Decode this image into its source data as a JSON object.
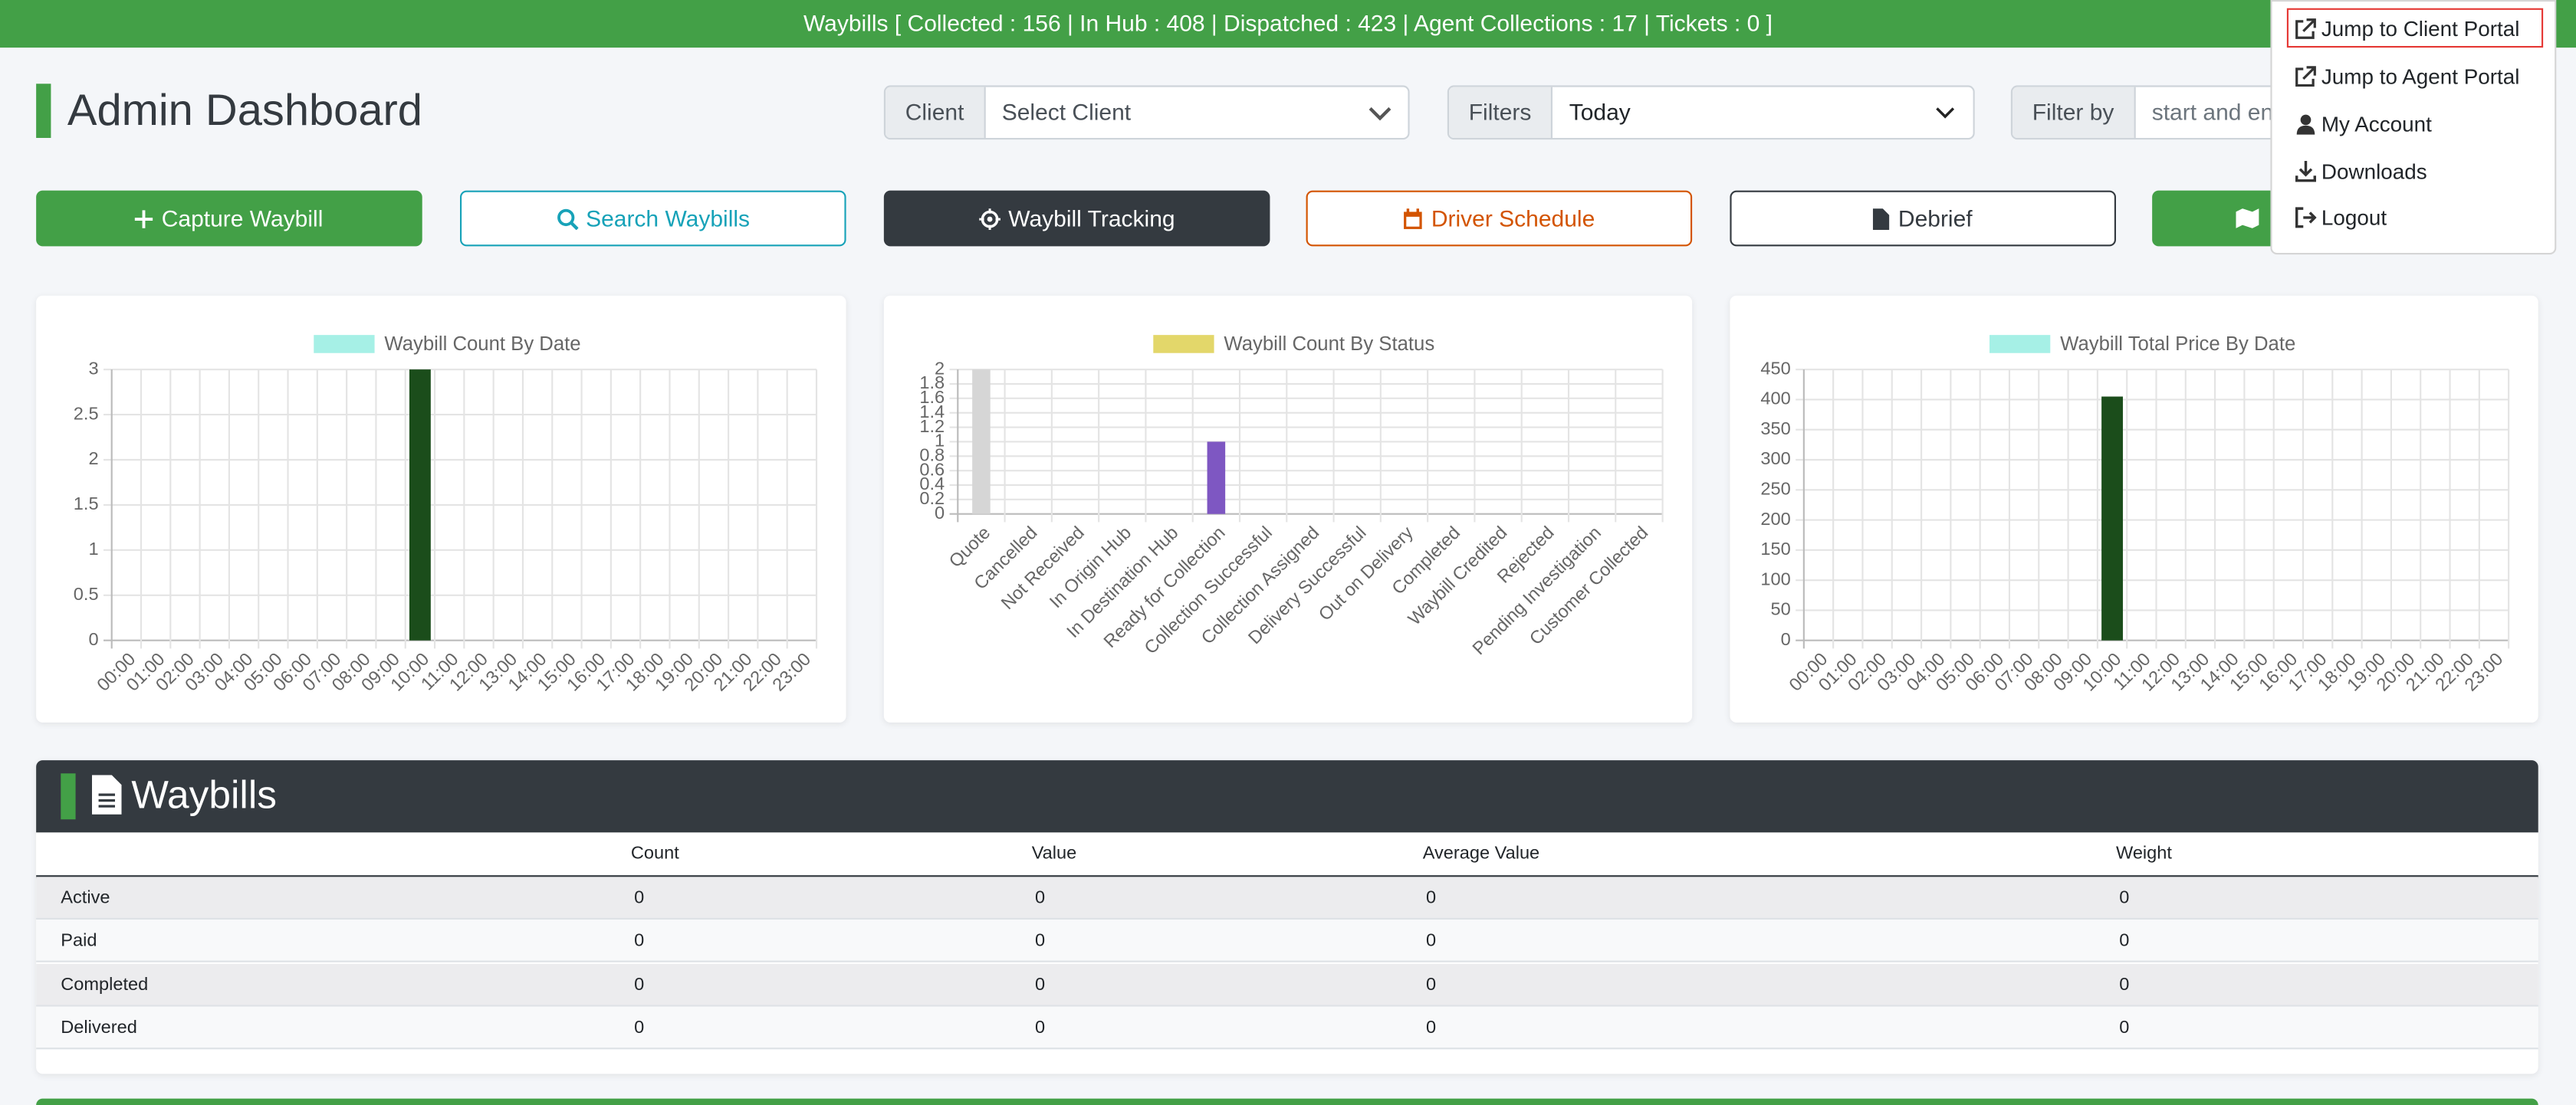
{
  "top_bar": {
    "text": "Waybills [ Collected : 156 | In Hub : 408 | Dispatched : 423 | Agent Collections : 17 | Tickets : 0 ]"
  },
  "header": {
    "title": "Admin Dashboard"
  },
  "filters": {
    "client_label": "Client",
    "client_placeholder": "Select Client",
    "filters_label": "Filters",
    "filters_value": "Today",
    "filter_by_label": "Filter by",
    "filter_by_placeholder": "start and en"
  },
  "buttons": [
    "Capture Waybill",
    "Search Waybills",
    "Waybill Tracking",
    "Driver Schedule",
    "Debrief"
  ],
  "user_menu": {
    "items": [
      "Jump to Client Portal",
      "Jump to Agent Portal",
      "My Account",
      "Downloads",
      "Logout"
    ]
  },
  "chart_data": [
    {
      "type": "bar",
      "categories": [
        "00:00",
        "01:00",
        "02:00",
        "03:00",
        "04:00",
        "05:00",
        "06:00",
        "07:00",
        "08:00",
        "09:00",
        "10:00",
        "11:00",
        "12:00",
        "13:00",
        "14:00",
        "15:00",
        "16:00",
        "17:00",
        "18:00",
        "19:00",
        "20:00",
        "21:00",
        "22:00",
        "23:00"
      ],
      "series": [
        {
          "name": "Waybill Count By Date",
          "color": "#a6f0e6",
          "values": [
            0,
            0,
            0,
            0,
            0,
            0,
            0,
            0,
            0,
            0,
            3,
            0,
            0,
            0,
            0,
            0,
            0,
            0,
            0,
            0,
            0,
            0,
            0,
            0
          ]
        }
      ],
      "bar_color": "#1b4d1b",
      "ylim": [
        0,
        3
      ],
      "yticks": [
        0,
        0.5,
        1,
        1.5,
        2,
        2.5,
        3
      ],
      "grid": true
    },
    {
      "type": "bar",
      "categories": [
        "Quote",
        "Cancelled",
        "Not Received",
        "In Origin Hub",
        "In Destination Hub",
        "Ready for Collection",
        "Collection Successful",
        "Collection Assigned",
        "Delivery Successful",
        "Out on Delivery",
        "Completed",
        "Waybill Credited",
        "Rejected",
        "Pending Investigation",
        "Customer Collected"
      ],
      "series": [
        {
          "name": "Waybill Count By Status",
          "color": "#e3d76a",
          "values": [
            2,
            0,
            0,
            0,
            0,
            1,
            0,
            0,
            0,
            0,
            0,
            0,
            0,
            0,
            0
          ]
        }
      ],
      "bar_colors": [
        "#d6d6d6",
        "#e57373",
        "#ffb74d",
        "#fff176",
        "#81c784",
        "#7e57c2",
        "#4fc3f7",
        "#9575cd",
        "#4db6ac",
        "#f06292",
        "#aed581",
        "#ba68c8",
        "#ff8a65",
        "#90a4ae",
        "#64b5f6"
      ],
      "ylim": [
        0,
        2
      ],
      "yticks": [
        0,
        0.2,
        0.4,
        0.6,
        0.8,
        1,
        1.2,
        1.4,
        1.6,
        1.8,
        2
      ],
      "grid": true
    },
    {
      "type": "bar",
      "categories": [
        "00:00",
        "01:00",
        "02:00",
        "03:00",
        "04:00",
        "05:00",
        "06:00",
        "07:00",
        "08:00",
        "09:00",
        "10:00",
        "11:00",
        "12:00",
        "13:00",
        "14:00",
        "15:00",
        "16:00",
        "17:00",
        "18:00",
        "19:00",
        "20:00",
        "21:00",
        "22:00",
        "23:00"
      ],
      "series": [
        {
          "name": "Waybill Total Price By Date",
          "color": "#a6f0e6",
          "values": [
            0,
            0,
            0,
            0,
            0,
            0,
            0,
            0,
            0,
            0,
            405,
            0,
            0,
            0,
            0,
            0,
            0,
            0,
            0,
            0,
            0,
            0,
            0,
            0
          ]
        }
      ],
      "bar_color": "#1b4d1b",
      "ylim": [
        0,
        450
      ],
      "yticks": [
        0,
        50,
        100,
        150,
        200,
        250,
        300,
        350,
        400,
        450
      ],
      "grid": true
    }
  ],
  "waybills": {
    "title": "Waybills",
    "columns": [
      "Count",
      "Value",
      "Average Value",
      "Weight"
    ],
    "rows": [
      {
        "label": "Active",
        "values": [
          0,
          0,
          0,
          0
        ]
      },
      {
        "label": "Paid",
        "values": [
          0,
          0,
          0,
          0
        ]
      },
      {
        "label": "Completed",
        "values": [
          0,
          0,
          0,
          0
        ]
      },
      {
        "label": "Delivered",
        "values": [
          0,
          0,
          0,
          0
        ]
      }
    ]
  }
}
